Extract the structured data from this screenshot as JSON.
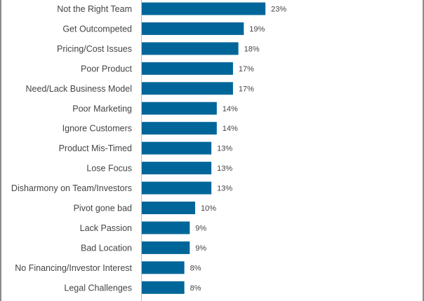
{
  "chart_data": {
    "type": "bar",
    "orientation": "horizontal",
    "categories": [
      "Not the Right Team",
      "Get Outcompeted",
      "Pricing/Cost Issues",
      "Poor Product",
      "Need/Lack Business Model",
      "Poor Marketing",
      "Ignore Customers",
      "Product Mis-Timed",
      "Lose Focus",
      "Disharmony on Team/Investors",
      "Pivot gone bad",
      "Lack Passion",
      "Bad Location",
      "No Financing/Investor Interest",
      "Legal Challenges"
    ],
    "values": [
      23,
      19,
      18,
      17,
      17,
      14,
      14,
      13,
      13,
      13,
      10,
      9,
      9,
      8,
      8
    ],
    "value_labels": [
      "23%",
      "19%",
      "18%",
      "17%",
      "17%",
      "14%",
      "14%",
      "13%",
      "13%",
      "13%",
      "10%",
      "9%",
      "9%",
      "8%",
      "8%"
    ],
    "partial_bar_value": 8,
    "unit": "%",
    "bar_color": "#006699",
    "grid": false
  }
}
